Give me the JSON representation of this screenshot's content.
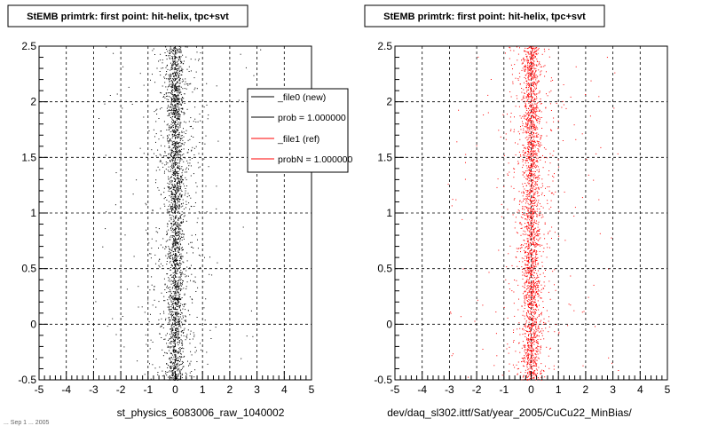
{
  "footer_stamp": "... Sep 1 ... 2005",
  "colors": {
    "new": "#000000",
    "ref": "#ff0000",
    "grid": "#000000"
  },
  "legend": {
    "entries": [
      {
        "label": "_file0 (new)",
        "color": "#000000"
      },
      {
        "label": "prob = 1.000000",
        "color": "#000000"
      },
      {
        "label": "_file1 (ref)",
        "color": "#ff0000"
      },
      {
        "label": "probN = 1.000000",
        "color": "#ff0000"
      }
    ]
  },
  "chart_data": [
    {
      "type": "scatter",
      "title": "StEMB primtrk: first point: hit-helix, tpc+svt",
      "xlabel": "st_physics_6083006_raw_1040002",
      "ylabel": "",
      "xlim": [
        -5,
        5
      ],
      "ylim": [
        -0.5,
        2.5
      ],
      "x_ticks": [
        "-5",
        "-4",
        "-3",
        "-2",
        "-1",
        "0",
        "1",
        "2",
        "3",
        "4",
        "5"
      ],
      "y_ticks": [
        "-0.5",
        "0",
        "0.5",
        "1",
        "1.5",
        "2",
        "2.5"
      ],
      "grid": true,
      "legend_position": "top-right",
      "series": [
        {
          "name": "_file0 (new)",
          "color": "#000000",
          "center": 0.0,
          "core_width": 0.15,
          "halo_width": 0.5
        }
      ]
    },
    {
      "type": "scatter",
      "title": "StEMB primtrk: first point: hit-helix, tpc+svt",
      "xlabel": "dev/daq_sl302.ittf/Sat/year_2005/CuCu22_MinBias/",
      "ylabel": "",
      "xlim": [
        -5,
        5
      ],
      "ylim": [
        -0.5,
        2.5
      ],
      "x_ticks": [
        "-5",
        "-4",
        "-3",
        "-2",
        "-1",
        "0",
        "1",
        "2",
        "3",
        "4",
        "5"
      ],
      "y_ticks": [
        "-0.5",
        "0",
        "0.5",
        "1",
        "1.5",
        "2",
        "2.5"
      ],
      "grid": true,
      "series": [
        {
          "name": "_file1 (ref)",
          "color": "#ff0000",
          "center": 0.0,
          "core_width": 0.15,
          "halo_width": 0.5
        }
      ]
    }
  ]
}
